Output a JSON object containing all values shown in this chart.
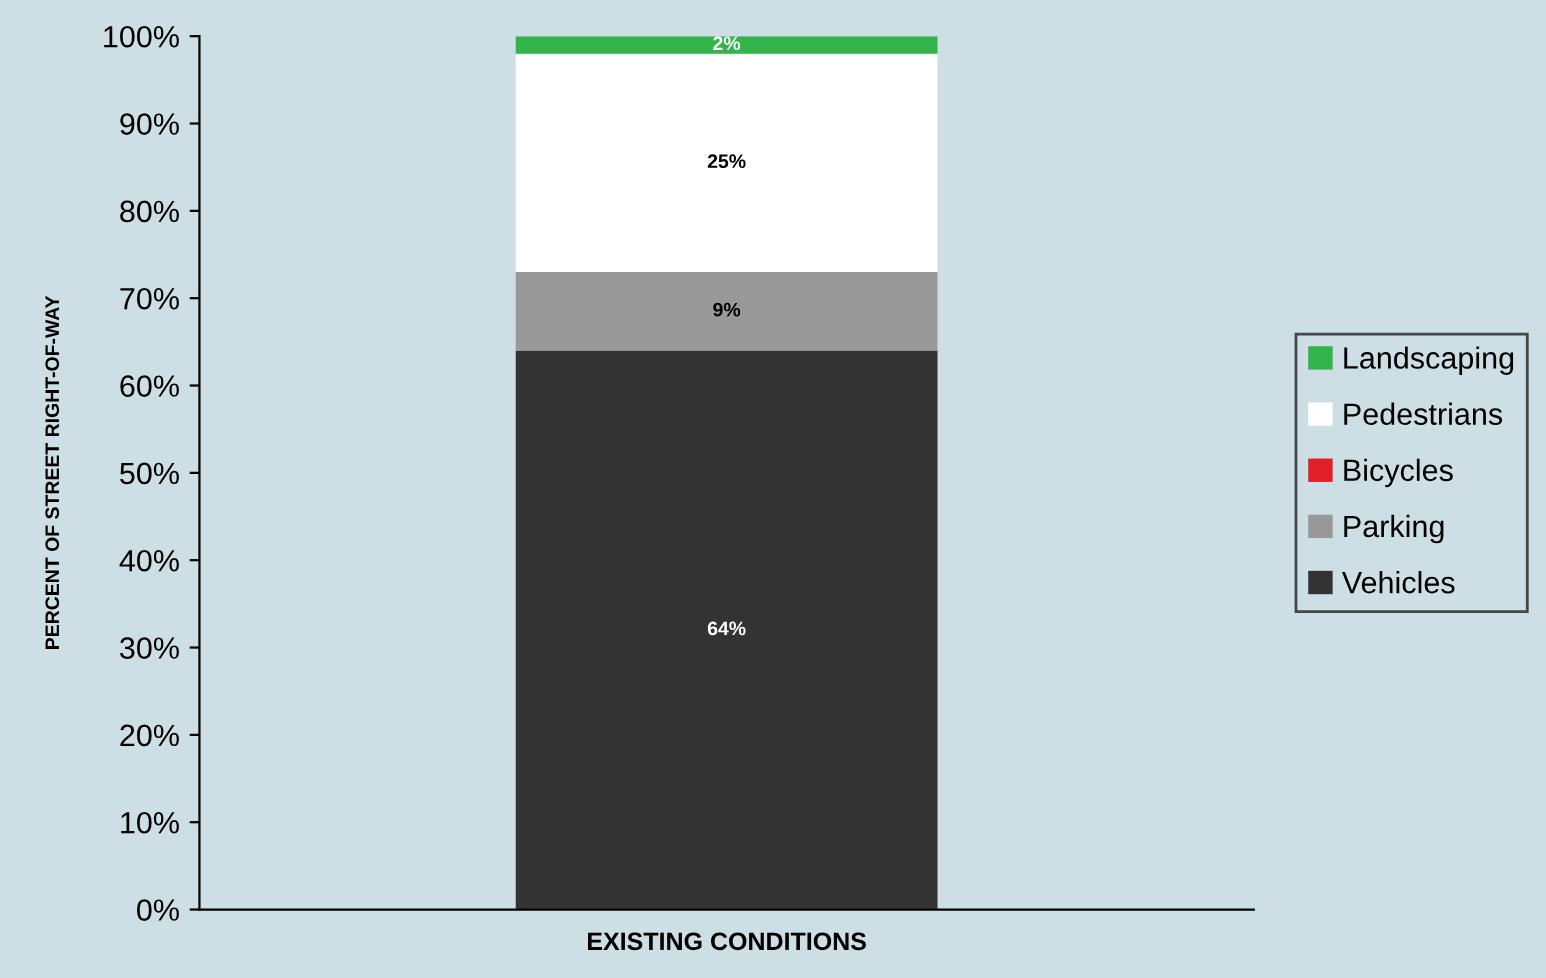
{
  "chart_data": {
    "type": "bar",
    "stacked": true,
    "ylabel": "PERCENT OF STREET RIGHT-OF-WAY",
    "categories": [
      "EXISTING CONDITIONS"
    ],
    "series": [
      {
        "name": "Vehicles",
        "color": "#333333",
        "values": [
          64
        ],
        "value_labels": [
          "64%"
        ]
      },
      {
        "name": "Parking",
        "color": "#999999",
        "values": [
          9
        ],
        "value_labels": [
          "9%"
        ]
      },
      {
        "name": "Bicycles",
        "color": "#e3202a",
        "values": [
          0
        ],
        "value_labels": [
          null
        ]
      },
      {
        "name": "Pedestrians",
        "color": "#ffffff",
        "values": [
          25
        ],
        "value_labels": [
          "25%"
        ]
      },
      {
        "name": "Landscaping",
        "color": "#33b44a",
        "values": [
          2
        ],
        "value_labels": [
          "2%"
        ]
      }
    ],
    "ylim": [
      0,
      100
    ],
    "yticks": [
      {
        "value": 0,
        "label": "0%"
      },
      {
        "value": 10,
        "label": "10%"
      },
      {
        "value": 20,
        "label": "20%"
      },
      {
        "value": 30,
        "label": "30%"
      },
      {
        "value": 40,
        "label": "40%"
      },
      {
        "value": 50,
        "label": "50%"
      },
      {
        "value": 60,
        "label": "60%"
      },
      {
        "value": 70,
        "label": "70%"
      },
      {
        "value": 80,
        "label": "80%"
      },
      {
        "value": 90,
        "label": "90%"
      },
      {
        "value": 100,
        "label": "100%"
      }
    ],
    "grid": false,
    "legend": "right"
  }
}
